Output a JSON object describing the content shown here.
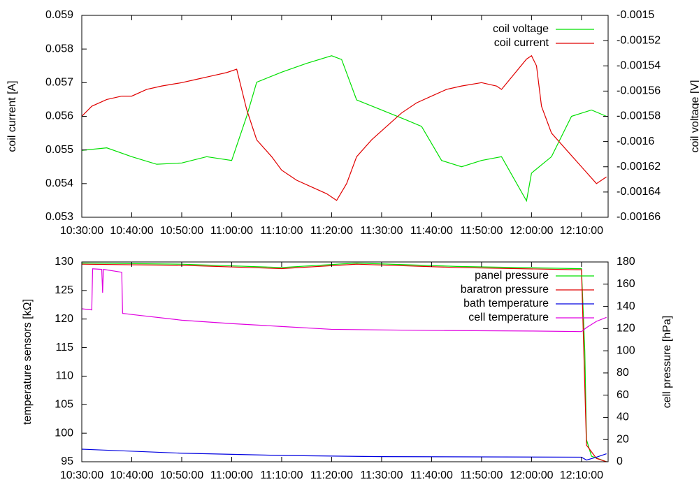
{
  "chart_data": [
    {
      "type": "line",
      "ylabel": "coil current [A]",
      "y2label": "coil voltage [V]",
      "xlim": [
        "10:30:00",
        "12:15:20"
      ],
      "xticks": [
        "10:30:00",
        "10:40:00",
        "10:50:00",
        "11:00:00",
        "11:10:00",
        "11:20:00",
        "11:30:00",
        "11:40:00",
        "11:50:00",
        "12:00:00",
        "12:10:00"
      ],
      "ylim": [
        0.053,
        0.059
      ],
      "yticks": [
        0.053,
        0.054,
        0.055,
        0.056,
        0.057,
        0.058,
        0.059
      ],
      "y2lim": [
        -0.00166,
        -0.0015
      ],
      "y2ticks": [
        -0.00166,
        -0.00164,
        -0.00162,
        -0.0016,
        -0.00158,
        -0.00156,
        -0.00154,
        -0.00152,
        -0.0015
      ],
      "legend": "upper right",
      "series": [
        {
          "name": "coil voltage",
          "color": "#00e000",
          "axis": "y2",
          "x": [
            "10:30:00",
            "10:35:00",
            "10:40:00",
            "10:45:00",
            "10:50:00",
            "10:55:00",
            "11:00:00",
            "11:03:00",
            "11:05:00",
            "11:10:00",
            "11:15:00",
            "11:20:00",
            "11:22:00",
            "11:25:00",
            "11:30:00",
            "11:35:00",
            "11:38:00",
            "11:42:00",
            "11:46:00",
            "11:50:00",
            "11:54:00",
            "11:59:00",
            "12:00:00",
            "12:04:00",
            "12:08:00",
            "12:12:00",
            "12:15:00"
          ],
          "values": [
            -0.001607,
            -0.001605,
            -0.001612,
            -0.001618,
            -0.001617,
            -0.001612,
            -0.001615,
            -0.00158,
            -0.001553,
            -0.001545,
            -0.001538,
            -0.001532,
            -0.001535,
            -0.001567,
            -0.001575,
            -0.001583,
            -0.001588,
            -0.001615,
            -0.00162,
            -0.001615,
            -0.001612,
            -0.001647,
            -0.001625,
            -0.001612,
            -0.00158,
            -0.001575,
            -0.00158
          ]
        },
        {
          "name": "coil current",
          "color": "#e00000",
          "axis": "y",
          "x": [
            "10:30:00",
            "10:32:00",
            "10:35:00",
            "10:38:00",
            "10:40:00",
            "10:43:00",
            "10:46:00",
            "10:50:00",
            "10:53:00",
            "10:56:00",
            "10:59:00",
            "11:01:00",
            "11:03:00",
            "11:05:00",
            "11:08:00",
            "11:10:00",
            "11:13:00",
            "11:16:00",
            "11:19:00",
            "11:21:00",
            "11:23:00",
            "11:25:00",
            "11:28:00",
            "11:31:00",
            "11:34:00",
            "11:37:00",
            "11:40:00",
            "11:43:00",
            "11:46:00",
            "11:50:00",
            "11:53:00",
            "11:54:00",
            "11:59:00",
            "12:00:00",
            "12:01:00",
            "12:02:00",
            "12:04:00",
            "12:07:00",
            "12:10:00",
            "12:13:00",
            "12:15:00"
          ],
          "values": [
            0.056,
            0.0563,
            0.0565,
            0.0566,
            0.0566,
            0.0568,
            0.0569,
            0.057,
            0.0571,
            0.0572,
            0.0573,
            0.0574,
            0.0562,
            0.0553,
            0.0548,
            0.0544,
            0.0541,
            0.0539,
            0.0537,
            0.0535,
            0.054,
            0.0548,
            0.0553,
            0.0557,
            0.0561,
            0.0564,
            0.0566,
            0.0568,
            0.0569,
            0.057,
            0.0569,
            0.0568,
            0.0577,
            0.0578,
            0.0575,
            0.0563,
            0.0555,
            0.055,
            0.0545,
            0.054,
            0.0542
          ]
        }
      ]
    },
    {
      "type": "line",
      "ylabel": "temperature sensors [kΩ]",
      "y2label": "cell pressure [hPa]",
      "xlim": [
        "10:30:00",
        "12:15:20"
      ],
      "xticks": [
        "10:30:00",
        "10:40:00",
        "10:50:00",
        "11:00:00",
        "11:10:00",
        "11:20:00",
        "11:30:00",
        "11:40:00",
        "11:50:00",
        "12:00:00",
        "12:10:00"
      ],
      "ylim": [
        95,
        130
      ],
      "yticks": [
        95,
        100,
        105,
        110,
        115,
        120,
        125,
        130
      ],
      "y2lim": [
        0,
        180
      ],
      "y2ticks": [
        0,
        20,
        40,
        60,
        80,
        100,
        120,
        140,
        160,
        180
      ],
      "legend": "upper right",
      "series": [
        {
          "name": "panel pressure",
          "color": "#00e000",
          "axis": "y2",
          "x": [
            "10:30:00",
            "10:50:00",
            "11:10:00",
            "11:25:00",
            "11:45:00",
            "12:09:00",
            "12:10:00",
            "12:10:40",
            "12:11:00",
            "12:12:00",
            "12:15:00"
          ],
          "values": [
            179,
            178,
            175,
            179,
            176,
            174,
            174,
            100,
            20,
            5,
            0
          ]
        },
        {
          "name": "baratron pressure",
          "color": "#e00000",
          "axis": "y2",
          "x": [
            "10:30:00",
            "10:50:00",
            "11:10:00",
            "11:25:00",
            "11:45:00",
            "12:09:00",
            "12:10:00",
            "12:11:00",
            "12:13:00",
            "12:15:00"
          ],
          "values": [
            178,
            177,
            174,
            178,
            175,
            173,
            173,
            15,
            3,
            0
          ]
        },
        {
          "name": "bath temperature",
          "color": "#0000e0",
          "axis": "y",
          "x": [
            "10:30:00",
            "10:50:00",
            "11:10:00",
            "11:30:00",
            "12:10:00",
            "12:11:00",
            "12:13:00",
            "12:15:00"
          ],
          "values": [
            97.2,
            96.5,
            96.1,
            95.9,
            95.8,
            95.3,
            95.8,
            96.4
          ]
        },
        {
          "name": "cell temperature",
          "color": "#e000e0",
          "axis": "y",
          "x": [
            "10:30:00",
            "10:32:00",
            "10:32:10",
            "10:34:00",
            "10:34:10",
            "10:34:20",
            "10:38:00",
            "10:38:10",
            "10:40:00",
            "10:50:00",
            "11:00:00",
            "11:10:00",
            "11:20:00",
            "11:40:00",
            "12:00:00",
            "12:10:00",
            "12:11:00",
            "12:13:00",
            "12:15:00"
          ],
          "values": [
            121.8,
            121.6,
            128.8,
            128.7,
            124.6,
            128.7,
            128.2,
            121.0,
            120.8,
            119.8,
            119.2,
            118.7,
            118.2,
            118.0,
            117.9,
            117.8,
            118.5,
            119.6,
            120.3
          ]
        }
      ]
    }
  ]
}
